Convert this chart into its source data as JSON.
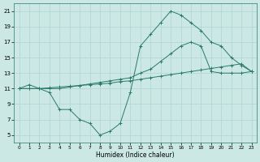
{
  "xlabel": "Humidex (Indice chaleur)",
  "bg_color": "#cce8e4",
  "grid_color": "#b0d4d0",
  "line_color": "#2a7a6a",
  "xlim": [
    -0.5,
    23.5
  ],
  "ylim": [
    4,
    22
  ],
  "xticks": [
    0,
    1,
    2,
    3,
    4,
    5,
    6,
    7,
    8,
    9,
    10,
    11,
    12,
    13,
    14,
    15,
    16,
    17,
    18,
    19,
    20,
    21,
    22,
    23
  ],
  "yticks": [
    5,
    7,
    9,
    11,
    13,
    15,
    17,
    19,
    21
  ],
  "series": [
    {
      "x": [
        0,
        1,
        2,
        3,
        4,
        5,
        6,
        7,
        8,
        9,
        10,
        11,
        12,
        13,
        14,
        15,
        16,
        17,
        18,
        19,
        20,
        21,
        22,
        23
      ],
      "y": [
        11,
        11.5,
        11,
        10.5,
        8.3,
        8.3,
        7.0,
        6.5,
        5.0,
        5.5,
        6.5,
        10.5,
        16.5,
        18.0,
        19.5,
        21.0,
        20.5,
        19.5,
        18.5,
        17.0,
        16.5,
        15.0,
        14.0,
        13.2
      ]
    },
    {
      "x": [
        0,
        1,
        2,
        3,
        4,
        5,
        6,
        7,
        8,
        9,
        10,
        11,
        12,
        13,
        14,
        15,
        16,
        17,
        18,
        19,
        20,
        21,
        22,
        23
      ],
      "y": [
        11,
        11,
        11,
        11,
        11,
        11.2,
        11.4,
        11.6,
        11.8,
        12.0,
        12.2,
        12.4,
        13.0,
        13.5,
        14.5,
        15.5,
        16.5,
        17.0,
        16.5,
        13.2,
        13.0,
        13.0,
        13.0,
        13.2
      ]
    },
    {
      "x": [
        0,
        1,
        2,
        3,
        4,
        5,
        6,
        7,
        8,
        9,
        10,
        11,
        12,
        13,
        14,
        15,
        16,
        17,
        18,
        19,
        20,
        21,
        22,
        23
      ],
      "y": [
        11,
        11,
        11,
        11.1,
        11.2,
        11.3,
        11.4,
        11.5,
        11.6,
        11.7,
        11.9,
        12.0,
        12.2,
        12.4,
        12.6,
        12.8,
        13.0,
        13.2,
        13.4,
        13.6,
        13.8,
        14.0,
        14.2,
        13.2
      ]
    }
  ]
}
